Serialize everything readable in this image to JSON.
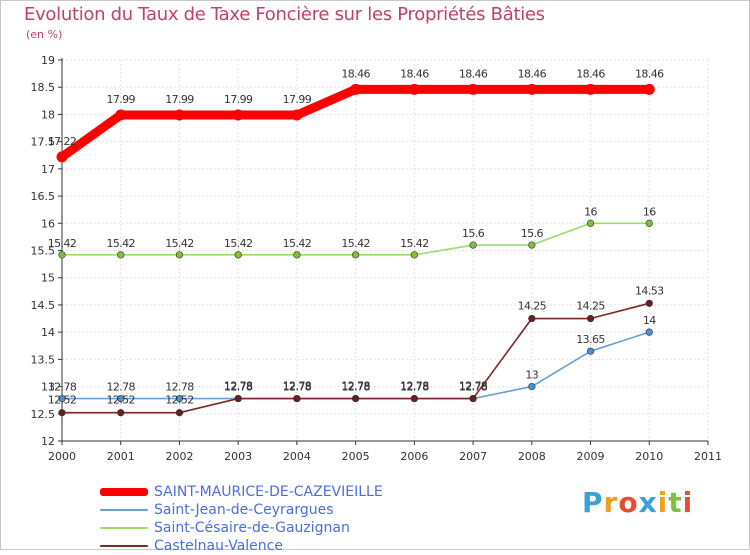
{
  "title": "Evolution du Taux de Taxe Foncière sur les Propriétés Bâties",
  "unit": "(en %)",
  "chart_data": {
    "type": "line",
    "title": "Evolution du Taux de Taxe Foncière sur les Propriétés Bâties",
    "ylabel": "(en %)",
    "xlabel": "",
    "ylim": [
      12,
      19
    ],
    "xlim": [
      2000,
      2011
    ],
    "yticks": [
      "12",
      "12.5",
      "13",
      "13.5",
      "14",
      "14.5",
      "15",
      "15.5",
      "16",
      "16.5",
      "17",
      "17.5",
      "18",
      "18.5",
      "19"
    ],
    "xticks": [
      "2000",
      "2001",
      "2002",
      "2003",
      "2004",
      "2005",
      "2006",
      "2007",
      "2008",
      "2009",
      "2010",
      "2011"
    ],
    "x": [
      2000,
      2001,
      2002,
      2003,
      2004,
      2005,
      2006,
      2007,
      2008,
      2009,
      2010
    ],
    "series": [
      {
        "name": "SAINT-MAURICE-DE-CAZEVIEILLE",
        "color": "#ff0000",
        "values": [
          17.22,
          17.99,
          17.99,
          17.99,
          17.99,
          18.46,
          18.46,
          18.46,
          18.46,
          18.46,
          18.46
        ],
        "labels": [
          "17.22",
          "17.99",
          "17.99",
          "17.99",
          "17.99",
          "18.46",
          "18.46",
          "18.46",
          "18.46",
          "18.46",
          "18.46"
        ]
      },
      {
        "name": "Saint-Jean-de-Ceyrargues",
        "color": "#6b9fd4",
        "marker": "#4a90d9",
        "values": [
          12.78,
          12.78,
          12.78,
          12.78,
          12.78,
          12.78,
          12.78,
          12.78,
          13,
          13.65,
          14
        ],
        "labels": [
          "12.78",
          "12.78",
          "12.78",
          "12.78",
          "12.78",
          "12.78",
          "12.78",
          "12.78",
          "13",
          "13.65",
          "14"
        ]
      },
      {
        "name": "Saint-Césaire-de-Gauzignan",
        "color": "#99dd66",
        "marker": "#77c23f",
        "values": [
          15.42,
          15.42,
          15.42,
          15.42,
          15.42,
          15.42,
          15.42,
          15.6,
          15.6,
          16,
          16
        ],
        "labels": [
          "15.42",
          "15.42",
          "15.42",
          "15.42",
          "15.42",
          "15.42",
          "15.42",
          "15.6",
          "15.6",
          "16",
          "16"
        ]
      },
      {
        "name": "Castelnau-Valence",
        "color": "#7a2a2a",
        "marker": "#6a1f1f",
        "values": [
          12.52,
          12.52,
          12.52,
          12.78,
          12.78,
          12.78,
          12.78,
          12.78,
          14.25,
          14.25,
          14.53
        ],
        "labels": [
          "12.52",
          "12.52",
          "12.52",
          "12.78",
          "12.78",
          "12.78",
          "12.78",
          "12.78",
          "14.25",
          "14.25",
          "14.53"
        ]
      }
    ],
    "grid": true,
    "legend": "bottom-left"
  },
  "brand": {
    "letters": [
      "P",
      "r",
      "o",
      "x",
      "i",
      "t",
      "i"
    ],
    "colors": [
      "#3aa0d8",
      "#f0a020",
      "#e84d30",
      "#3aa0d8",
      "#f0a020",
      "#7cc040",
      "#e84d30"
    ]
  }
}
